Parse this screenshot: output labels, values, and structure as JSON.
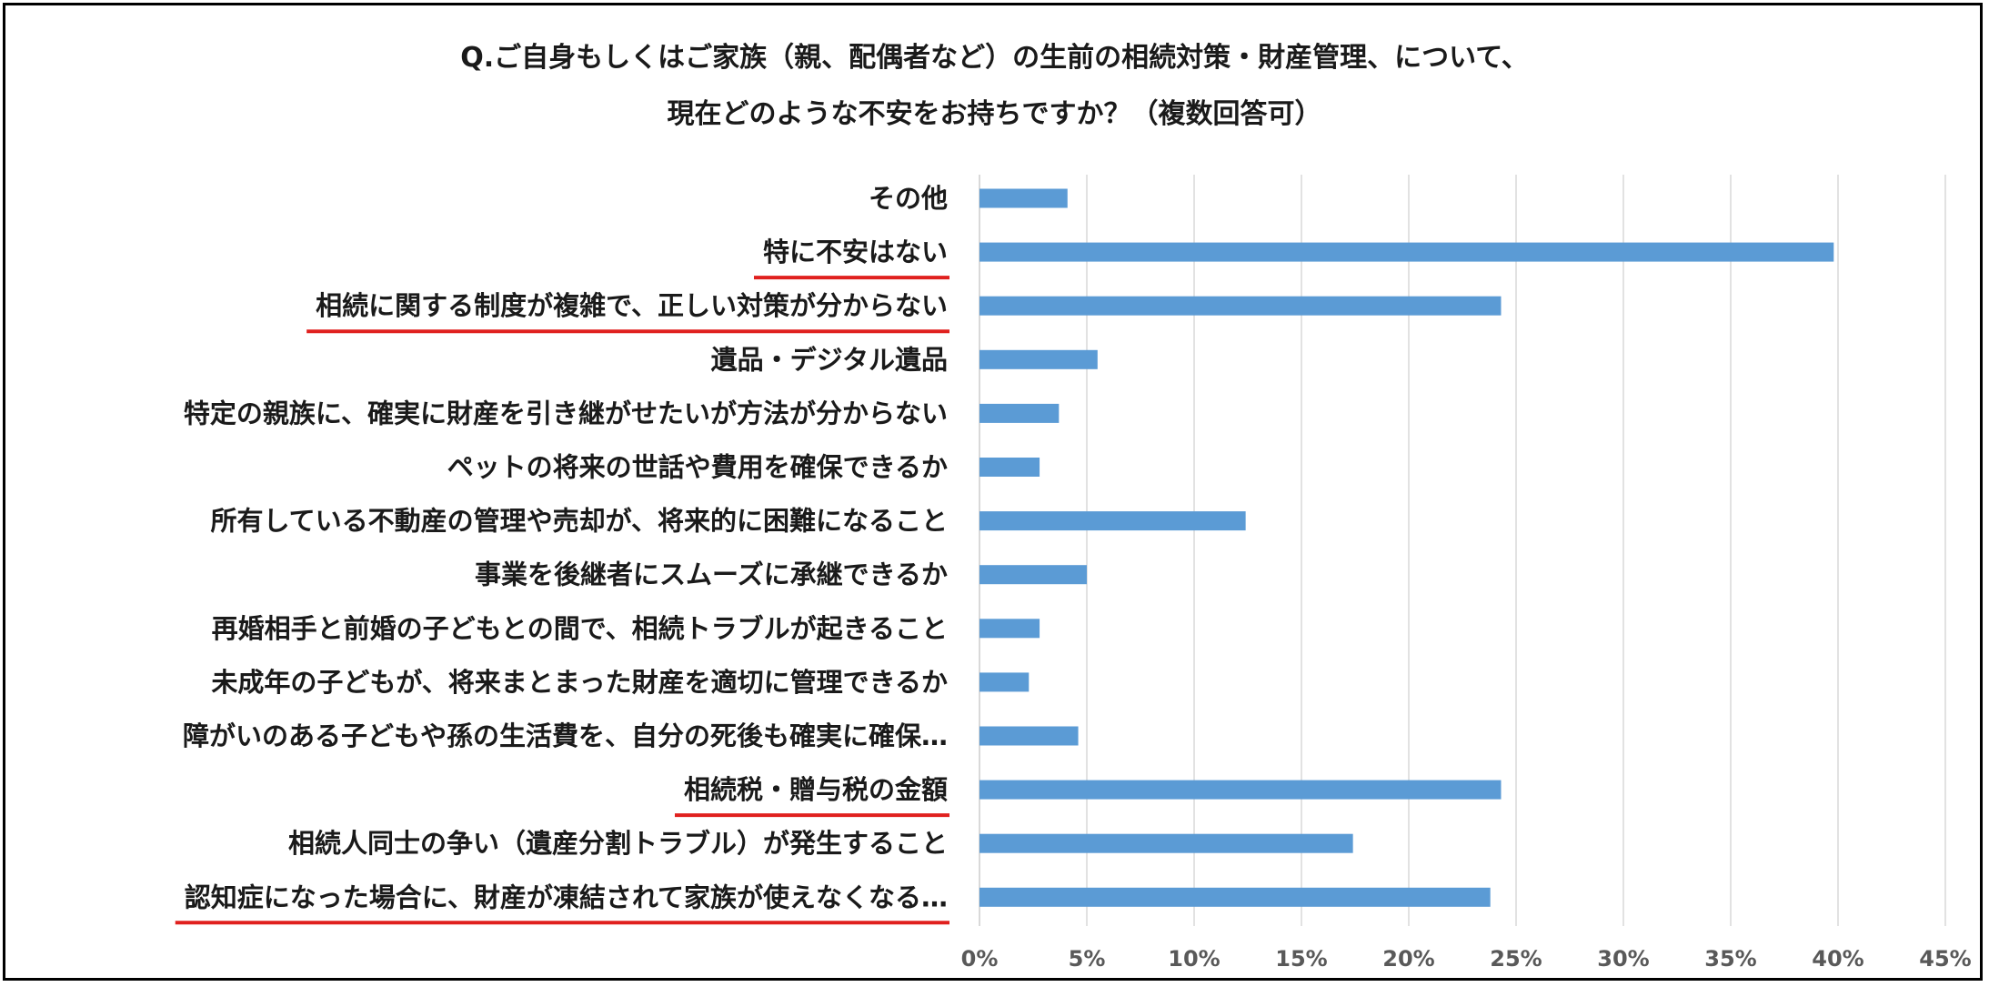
{
  "chart_data": {
    "type": "bar",
    "orientation": "horizontal",
    "title": "Q.ご自身もしくはご家族（親、配偶者など）の生前の相続対策・財産管理、について、",
    "subtitle": "現在どのような不安をお持ちですか？（複数回答可）",
    "categories": [
      "その他",
      "特に不安はない",
      "相続に関する制度が複雑で、正しい対策が分からない",
      "遺品・デジタル遺品",
      "特定の親族に、確実に財産を引き継がせたいが方法が分からない",
      "ペットの将来の世話や費用を確保できるか",
      "所有している不動産の管理や売却が、将来的に困難になること",
      "事業を後継者にスムーズに承継できるか",
      "再婚相手と前婚の子どもとの間で、相続トラブルが起きること",
      "未成年の子どもが、将来まとまった財産を適切に管理できるか",
      "障がいのある子どもや孫の生活費を、自分の死後も確実に確保…",
      "相続税・贈与税の金額",
      "相続人同士の争い（遺産分割トラブル）が発生すること",
      "認知症になった場合に、財産が凍結されて家族が使えなくなる…"
    ],
    "values": [
      4.1,
      39.8,
      24.3,
      5.5,
      3.7,
      2.8,
      12.4,
      5.0,
      2.8,
      2.3,
      4.6,
      24.3,
      17.4,
      23.8
    ],
    "highlighted": [
      false,
      true,
      true,
      false,
      false,
      false,
      false,
      false,
      false,
      false,
      false,
      true,
      false,
      true
    ],
    "xlim": [
      0,
      45
    ],
    "xticks": [
      "0%",
      "5%",
      "10%",
      "15%",
      "20%",
      "25%",
      "30%",
      "35%",
      "40%",
      "45%"
    ],
    "xlabel": "",
    "ylabel": "",
    "grid": true,
    "bar_color": "#5b9bd5",
    "highlight_color": "#e0201e",
    "grid_color": "#d9d9d9",
    "tick_color": "#595959",
    "label_color": "#1a1a1a"
  }
}
